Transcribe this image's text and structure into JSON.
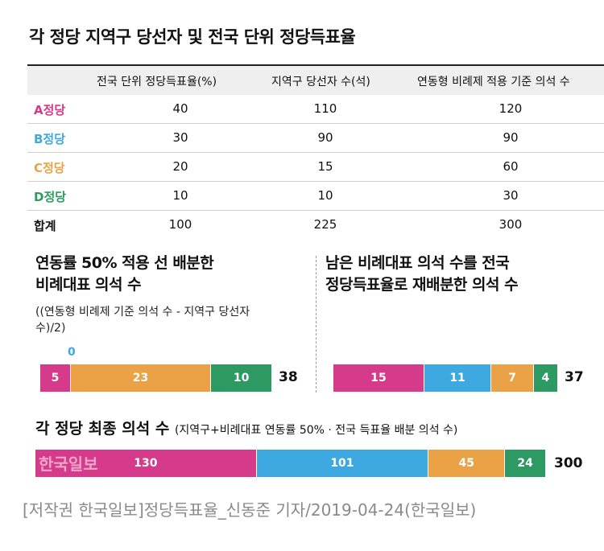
{
  "title": "각 정당 지역구 당선자 및 전국 단위 정당득표율",
  "table": {
    "headers": [
      "",
      "전국 단위 정당득표율(%)",
      "지역구 당선자 수(석)",
      "연동형 비례제 적용 기준 의석 수"
    ],
    "rows": [
      {
        "party": "A정당",
        "color": "#d63a8a",
        "vote": "40",
        "district": "110",
        "base": "120"
      },
      {
        "party": "B정당",
        "color": "#3ea9e0",
        "vote": "30",
        "district": "90",
        "base": "90"
      },
      {
        "party": "C정당",
        "color": "#eba246",
        "vote": "20",
        "district": "15",
        "base": "60"
      },
      {
        "party": "D정당",
        "color": "#2e9a63",
        "vote": "10",
        "district": "10",
        "base": "30"
      },
      {
        "party": "합계",
        "color": "#111111",
        "vote": "100",
        "district": "225",
        "base": "300"
      }
    ]
  },
  "section1": {
    "title_line1": "연동률 50% 적용 선 배분한",
    "title_line2": "비례대표 의석 수",
    "note_line1": "((연동형 비례제 기준 의석 수 - 지역구 당선자",
    "note_line2": "수)/2)",
    "zero_label": "0",
    "total": "38"
  },
  "section2": {
    "title_line1": "남은 비례대표 의석 수를 전국",
    "title_line2": "정당득표율로 재배분한 의석 수",
    "total": "37"
  },
  "section3": {
    "title": "각 정당 최종 의석 수",
    "subtitle": "(지역구+비례대표 연동률 50% · 전국 득표율 배분 의석 수)",
    "total": "300",
    "watermark": "한국일보"
  },
  "credit": "[저작권 한국일보]정당득표율_신동준 기자/2019-04-24(한국일보)",
  "chart_data": [
    {
      "type": "bar",
      "stacked": true,
      "categories": [
        "A정당",
        "B정당",
        "C정당",
        "D정당"
      ],
      "values": [
        5,
        0,
        23,
        10
      ],
      "colors": [
        "#d63a8a",
        "#3ea9e0",
        "#eba246",
        "#2e9a63"
      ],
      "total": 38
    },
    {
      "type": "bar",
      "stacked": true,
      "categories": [
        "A정당",
        "B정당",
        "C정당",
        "D정당"
      ],
      "values": [
        15,
        11,
        7,
        4
      ],
      "colors": [
        "#d63a8a",
        "#3ea9e0",
        "#eba246",
        "#2e9a63"
      ],
      "total": 37
    },
    {
      "type": "bar",
      "stacked": true,
      "categories": [
        "A정당",
        "B정당",
        "C정당",
        "D정당"
      ],
      "values": [
        130,
        101,
        45,
        24
      ],
      "colors": [
        "#d63a8a",
        "#3ea9e0",
        "#eba246",
        "#2e9a63"
      ],
      "total": 300
    }
  ]
}
